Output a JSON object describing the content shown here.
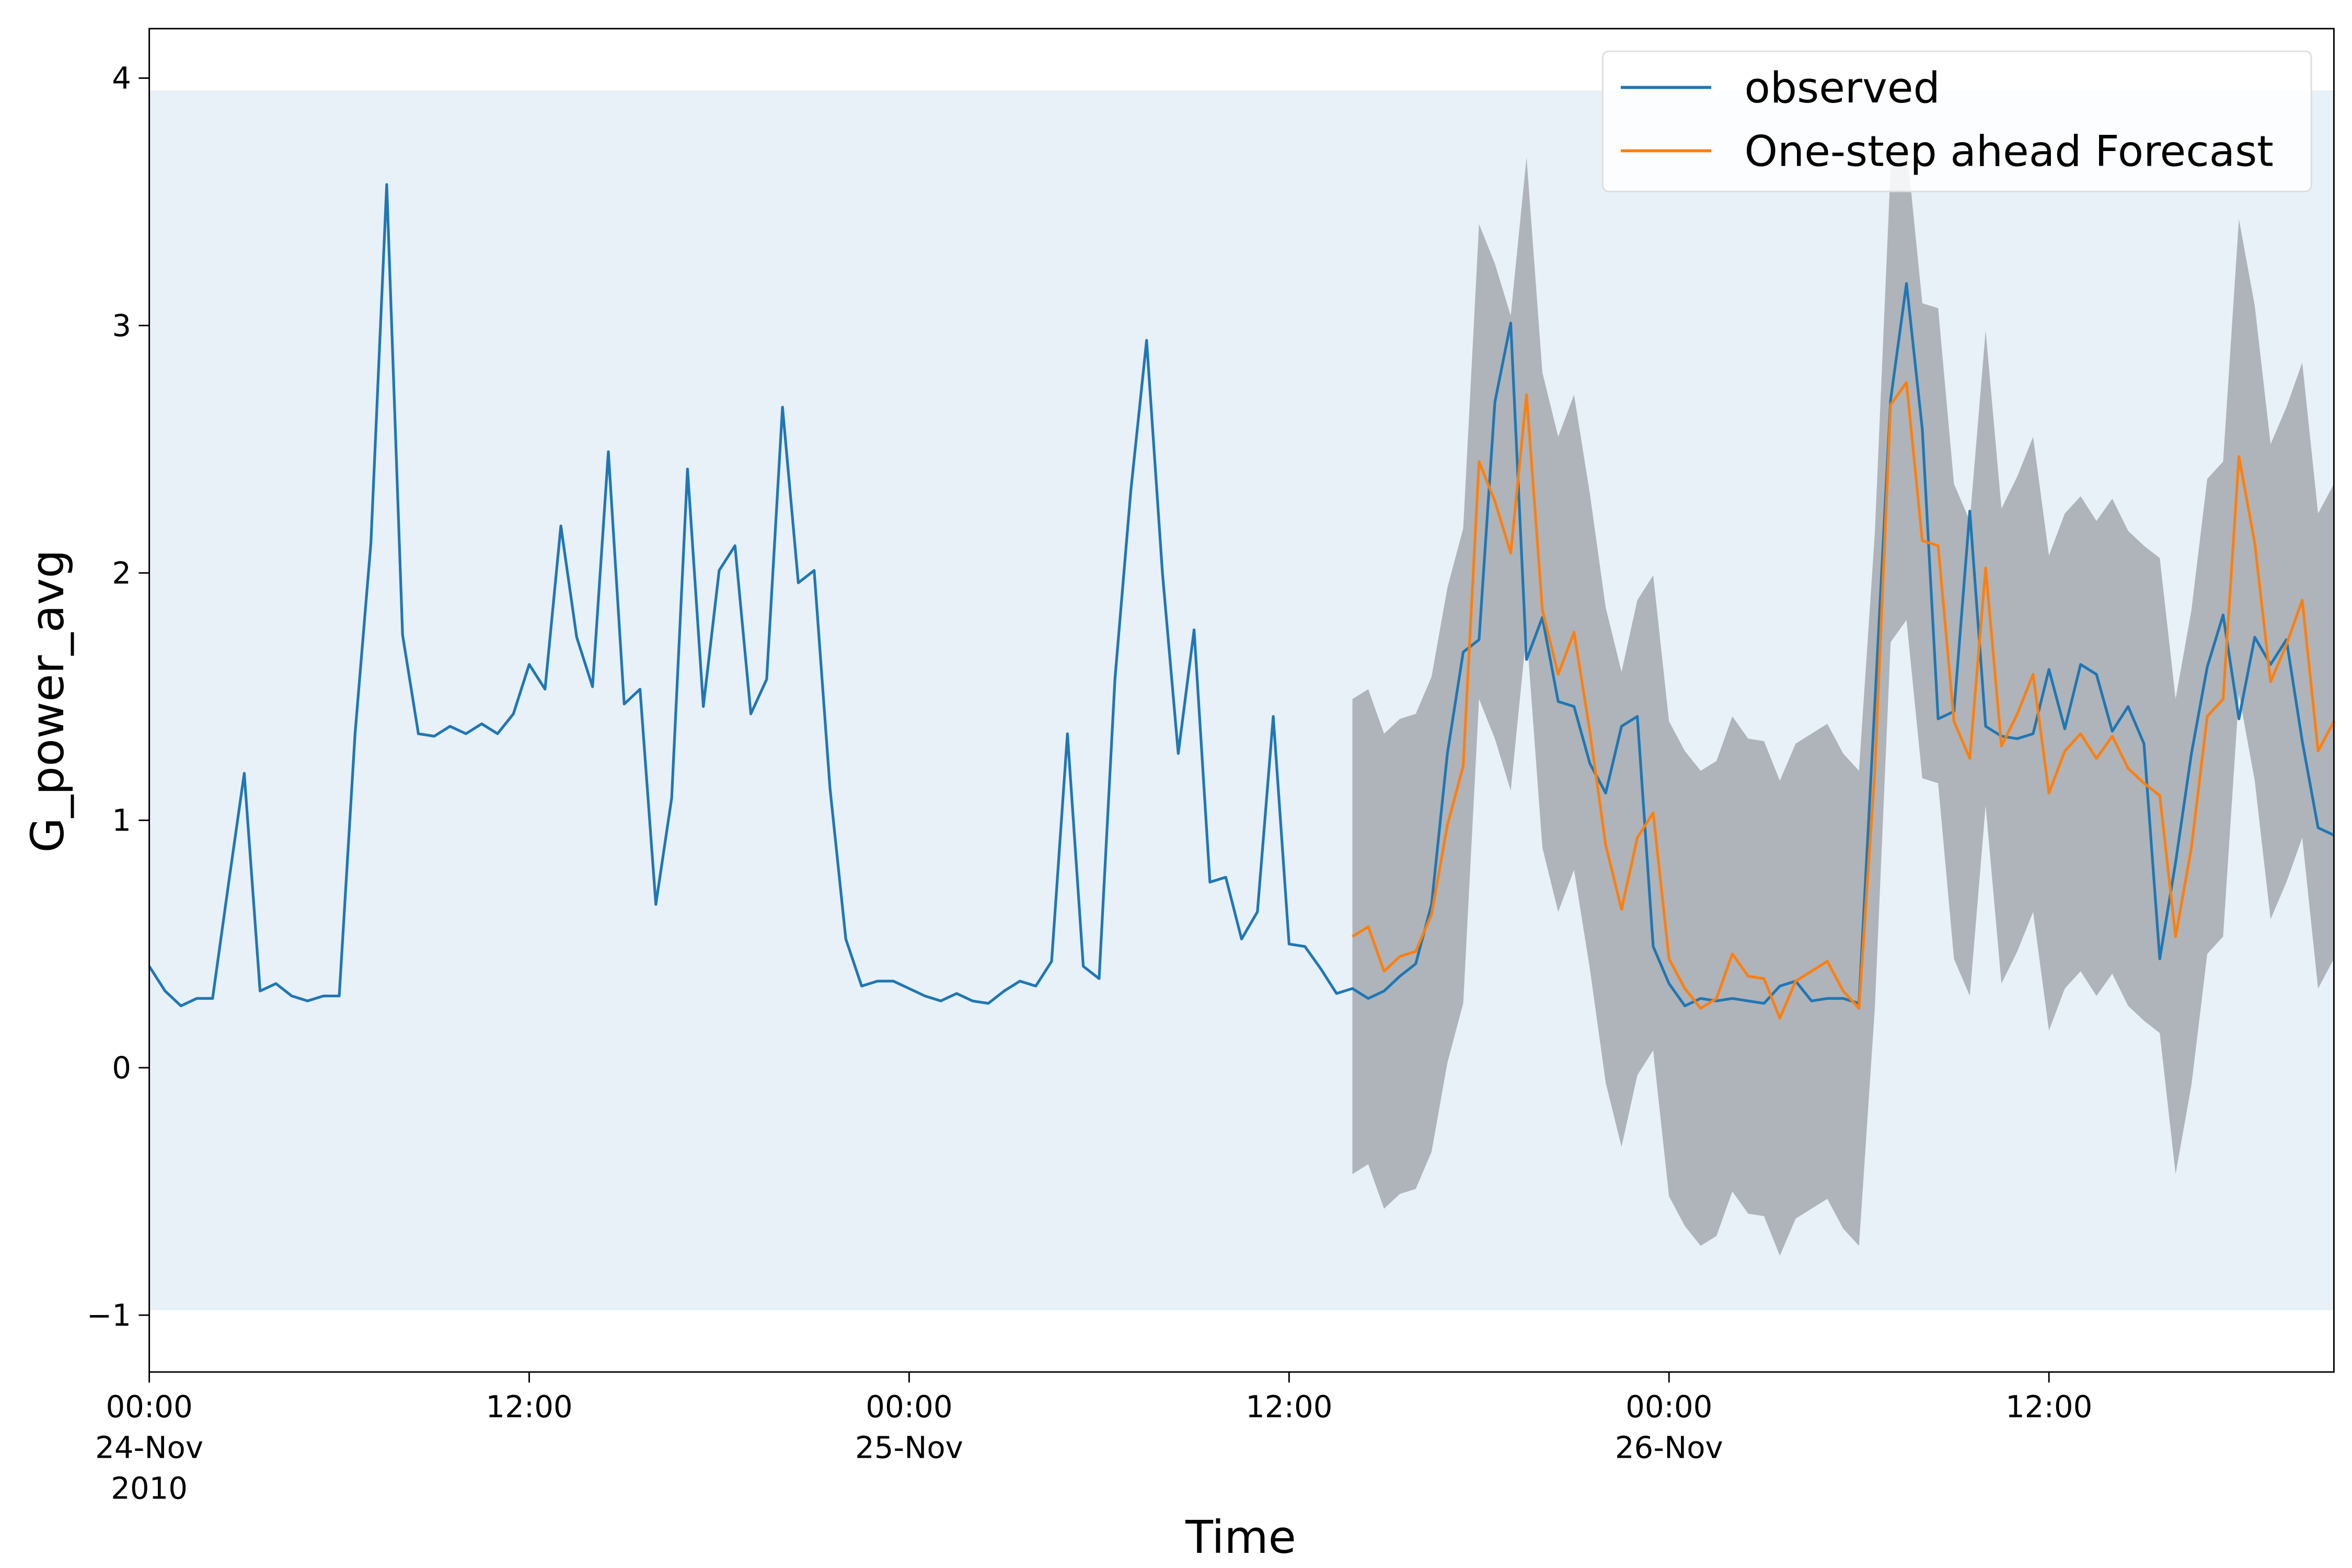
{
  "chart_data": {
    "type": "line",
    "x_label": "Time",
    "y_label": "G_power_avg",
    "xlim": [
      "2010-11-24T00:00",
      "2010-11-26T21:00"
    ],
    "ylim": [
      -1.23,
      4.2
    ],
    "yticks": [
      {
        "value": -1,
        "label": "−1"
      },
      0,
      1,
      2,
      3,
      4
    ],
    "xticks": [
      {
        "value": "2010-11-24T00:00",
        "label": "00:00\n24-Nov\n2010"
      },
      {
        "value": "2010-11-24T12:00",
        "label": "12:00"
      },
      {
        "value": "2010-11-25T00:00",
        "label": "00:00\n25-Nov"
      },
      {
        "value": "2010-11-25T12:00",
        "label": "12:00"
      },
      {
        "value": "2010-11-26T00:00",
        "label": "00:00\n26-Nov"
      },
      {
        "value": "2010-11-26T12:00",
        "label": "12:00"
      }
    ],
    "legend": "upper right",
    "background_band": {
      "range": [
        -0.98,
        3.95
      ],
      "color": "#e8f0f8"
    },
    "x": [
      "2010-11-24T00:00",
      "2010-11-24T00:30",
      "2010-11-24T01:00",
      "2010-11-24T01:30",
      "2010-11-24T02:00",
      "2010-11-24T02:30",
      "2010-11-24T03:00",
      "2010-11-24T03:30",
      "2010-11-24T04:00",
      "2010-11-24T04:30",
      "2010-11-24T05:00",
      "2010-11-24T05:30",
      "2010-11-24T06:00",
      "2010-11-24T06:30",
      "2010-11-24T07:00",
      "2010-11-24T07:30",
      "2010-11-24T08:00",
      "2010-11-24T08:30",
      "2010-11-24T09:00",
      "2010-11-24T09:30",
      "2010-11-24T10:00",
      "2010-11-24T10:30",
      "2010-11-24T11:00",
      "2010-11-24T11:30",
      "2010-11-24T12:00",
      "2010-11-24T12:30",
      "2010-11-24T13:00",
      "2010-11-24T13:30",
      "2010-11-24T14:00",
      "2010-11-24T14:30",
      "2010-11-24T15:00",
      "2010-11-24T15:30",
      "2010-11-24T16:00",
      "2010-11-24T16:30",
      "2010-11-24T17:00",
      "2010-11-24T17:30",
      "2010-11-24T18:00",
      "2010-11-24T18:30",
      "2010-11-24T19:00",
      "2010-11-24T19:30",
      "2010-11-24T20:00",
      "2010-11-24T20:30",
      "2010-11-24T21:00",
      "2010-11-24T21:30",
      "2010-11-24T22:00",
      "2010-11-24T22:30",
      "2010-11-24T23:00",
      "2010-11-24T23:30",
      "2010-11-25T00:00",
      "2010-11-25T00:30",
      "2010-11-25T01:00",
      "2010-11-25T01:30",
      "2010-11-25T02:00",
      "2010-11-25T02:30",
      "2010-11-25T03:00",
      "2010-11-25T03:30",
      "2010-11-25T04:00",
      "2010-11-25T04:30",
      "2010-11-25T05:00",
      "2010-11-25T05:30",
      "2010-11-25T06:00",
      "2010-11-25T06:30",
      "2010-11-25T07:00",
      "2010-11-25T07:30",
      "2010-11-25T08:00",
      "2010-11-25T08:30",
      "2010-11-25T09:00",
      "2010-11-25T09:30",
      "2010-11-25T10:00",
      "2010-11-25T10:30",
      "2010-11-25T11:00",
      "2010-11-25T11:30",
      "2010-11-25T12:00",
      "2010-11-25T12:30",
      "2010-11-25T13:00",
      "2010-11-25T13:30",
      "2010-11-25T14:00",
      "2010-11-25T14:30",
      "2010-11-25T15:00",
      "2010-11-25T15:30",
      "2010-11-25T16:00",
      "2010-11-25T16:30",
      "2010-11-25T17:00",
      "2010-11-25T17:30",
      "2010-11-25T18:00",
      "2010-11-25T18:30",
      "2010-11-25T19:00",
      "2010-11-25T19:30",
      "2010-11-25T20:00",
      "2010-11-25T20:30",
      "2010-11-25T21:00",
      "2010-11-25T21:30",
      "2010-11-25T22:00",
      "2010-11-25T22:30",
      "2010-11-25T23:00",
      "2010-11-25T23:30",
      "2010-11-26T00:00",
      "2010-11-26T00:30",
      "2010-11-26T01:00",
      "2010-11-26T01:30",
      "2010-11-26T02:00",
      "2010-11-26T02:30",
      "2010-11-26T03:00",
      "2010-11-26T03:30",
      "2010-11-26T04:00",
      "2010-11-26T04:30",
      "2010-11-26T05:00",
      "2010-11-26T05:30",
      "2010-11-26T06:00",
      "2010-11-26T06:30",
      "2010-11-26T07:00",
      "2010-11-26T07:30",
      "2010-11-26T08:00",
      "2010-11-26T08:30",
      "2010-11-26T09:00",
      "2010-11-26T09:30",
      "2010-11-26T10:00",
      "2010-11-26T10:30",
      "2010-11-26T11:00",
      "2010-11-26T11:30",
      "2010-11-26T12:00",
      "2010-11-26T12:30",
      "2010-11-26T13:00",
      "2010-11-26T13:30",
      "2010-11-26T14:00",
      "2010-11-26T14:30",
      "2010-11-26T15:00",
      "2010-11-26T15:30",
      "2010-11-26T16:00",
      "2010-11-26T16:30",
      "2010-11-26T17:00",
      "2010-11-26T17:30",
      "2010-11-26T18:00",
      "2010-11-26T18:30",
      "2010-11-26T19:00",
      "2010-11-26T19:30",
      "2010-11-26T20:00",
      "2010-11-26T20:30",
      "2010-11-26T21:00"
    ],
    "band": {
      "color": "#aeb4b9",
      "lower": [
        null,
        null,
        null,
        null,
        null,
        null,
        null,
        null,
        null,
        null,
        null,
        null,
        null,
        null,
        null,
        null,
        null,
        null,
        null,
        null,
        null,
        null,
        null,
        null,
        null,
        null,
        null,
        null,
        null,
        null,
        null,
        null,
        null,
        null,
        null,
        null,
        null,
        null,
        null,
        null,
        null,
        null,
        null,
        null,
        null,
        null,
        null,
        null,
        null,
        null,
        null,
        null,
        null,
        null,
        null,
        null,
        null,
        null,
        null,
        null,
        null,
        null,
        null,
        null,
        null,
        null,
        null,
        null,
        null,
        null,
        null,
        null,
        null,
        null,
        null,
        null,
        -0.43,
        -0.39,
        -0.57,
        -0.51,
        -0.49,
        -0.34,
        0.02,
        0.26,
        1.49,
        1.33,
        1.12,
        1.76,
        0.89,
        0.63,
        0.8,
        0.4,
        -0.06,
        -0.32,
        -0.03,
        0.07,
        -0.52,
        -0.64,
        -0.72,
        -0.68,
        -0.5,
        -0.59,
        -0.6,
        -0.76,
        -0.61,
        -0.57,
        -0.53,
        -0.65,
        -0.72,
        0.24,
        1.72,
        1.81,
        1.17,
        1.15,
        0.44,
        0.29,
        1.06,
        0.34,
        0.47,
        0.63,
        0.15,
        0.32,
        0.39,
        0.29,
        0.38,
        0.25,
        0.19,
        0.14,
        -0.43,
        -0.07,
        0.46,
        0.53,
        1.51,
        1.16,
        0.6,
        0.75,
        0.93,
        0.32,
        0.44
      ],
      "upper": [
        null,
        null,
        null,
        null,
        null,
        null,
        null,
        null,
        null,
        null,
        null,
        null,
        null,
        null,
        null,
        null,
        null,
        null,
        null,
        null,
        null,
        null,
        null,
        null,
        null,
        null,
        null,
        null,
        null,
        null,
        null,
        null,
        null,
        null,
        null,
        null,
        null,
        null,
        null,
        null,
        null,
        null,
        null,
        null,
        null,
        null,
        null,
        null,
        null,
        null,
        null,
        null,
        null,
        null,
        null,
        null,
        null,
        null,
        null,
        null,
        null,
        null,
        null,
        null,
        null,
        null,
        null,
        null,
        null,
        null,
        null,
        null,
        null,
        null,
        null,
        null,
        1.49,
        1.53,
        1.35,
        1.41,
        1.43,
        1.58,
        1.94,
        2.18,
        3.41,
        3.25,
        3.04,
        3.68,
        2.81,
        2.55,
        2.72,
        2.32,
        1.86,
        1.6,
        1.89,
        1.99,
        1.4,
        1.28,
        1.2,
        1.24,
        1.42,
        1.33,
        1.32,
        1.16,
        1.31,
        1.35,
        1.39,
        1.27,
        1.2,
        2.16,
        3.64,
        3.73,
        3.09,
        3.07,
        2.36,
        2.21,
        2.98,
        2.26,
        2.39,
        2.55,
        2.07,
        2.24,
        2.31,
        2.21,
        2.3,
        2.17,
        2.11,
        2.06,
        1.49,
        1.85,
        2.38,
        2.45,
        3.43,
        3.08,
        2.52,
        2.67,
        2.85,
        2.24,
        2.36
      ]
    },
    "series": [
      {
        "name": "observed",
        "color": "#1f77b4",
        "values": [
          0.41,
          0.31,
          0.25,
          0.28,
          0.28,
          0.74,
          1.19,
          0.31,
          0.34,
          0.29,
          0.27,
          0.29,
          0.29,
          1.35,
          2.12,
          3.57,
          1.75,
          1.35,
          1.34,
          1.38,
          1.35,
          1.39,
          1.35,
          1.43,
          1.63,
          1.53,
          2.19,
          1.74,
          1.54,
          2.49,
          1.47,
          1.53,
          0.66,
          1.09,
          2.42,
          1.46,
          2.01,
          2.11,
          1.43,
          1.57,
          2.67,
          1.96,
          2.01,
          1.13,
          0.52,
          0.33,
          0.35,
          0.35,
          0.32,
          0.29,
          0.27,
          0.3,
          0.27,
          0.26,
          0.31,
          0.35,
          0.33,
          0.43,
          1.35,
          0.41,
          0.36,
          1.57,
          2.33,
          2.94,
          2.0,
          1.27,
          1.77,
          0.75,
          0.77,
          0.52,
          0.63,
          1.42,
          0.5,
          0.49,
          0.4,
          0.3,
          0.32,
          0.28,
          0.31,
          0.37,
          0.42,
          0.66,
          1.27,
          1.68,
          1.73,
          2.69,
          3.01,
          1.65,
          1.82,
          1.48,
          1.46,
          1.23,
          1.11,
          1.38,
          1.42,
          0.49,
          0.34,
          0.25,
          0.28,
          0.27,
          0.28,
          0.27,
          0.26,
          0.33,
          0.35,
          0.27,
          0.28,
          0.28,
          0.26,
          1.47,
          2.7,
          3.17,
          2.58,
          1.41,
          1.44,
          2.25,
          1.38,
          1.34,
          1.33,
          1.35,
          1.61,
          1.37,
          1.63,
          1.59,
          1.36,
          1.46,
          1.31,
          0.44,
          0.83,
          1.27,
          1.62,
          1.83,
          1.41,
          1.74,
          1.63,
          1.73,
          1.32,
          0.97,
          0.94
        ]
      },
      {
        "name": "One-step ahead Forecast",
        "color": "#ff7f0e",
        "values": [
          null,
          null,
          null,
          null,
          null,
          null,
          null,
          null,
          null,
          null,
          null,
          null,
          null,
          null,
          null,
          null,
          null,
          null,
          null,
          null,
          null,
          null,
          null,
          null,
          null,
          null,
          null,
          null,
          null,
          null,
          null,
          null,
          null,
          null,
          null,
          null,
          null,
          null,
          null,
          null,
          null,
          null,
          null,
          null,
          null,
          null,
          null,
          null,
          null,
          null,
          null,
          null,
          null,
          null,
          null,
          null,
          null,
          null,
          null,
          null,
          null,
          null,
          null,
          null,
          null,
          null,
          null,
          null,
          null,
          null,
          null,
          null,
          null,
          null,
          null,
          null,
          0.53,
          0.57,
          0.39,
          0.45,
          0.47,
          0.62,
          0.98,
          1.22,
          2.45,
          2.29,
          2.08,
          2.72,
          1.85,
          1.59,
          1.76,
          1.36,
          0.9,
          0.64,
          0.93,
          1.03,
          0.44,
          0.32,
          0.24,
          0.28,
          0.46,
          0.37,
          0.36,
          0.2,
          0.35,
          0.39,
          0.43,
          0.31,
          0.24,
          1.2,
          2.68,
          2.77,
          2.13,
          2.11,
          1.4,
          1.25,
          2.02,
          1.3,
          1.43,
          1.59,
          1.11,
          1.28,
          1.35,
          1.25,
          1.34,
          1.21,
          1.15,
          1.1,
          0.53,
          0.89,
          1.42,
          1.49,
          2.47,
          2.12,
          1.56,
          1.71,
          1.89,
          1.28,
          1.4
        ]
      }
    ]
  }
}
